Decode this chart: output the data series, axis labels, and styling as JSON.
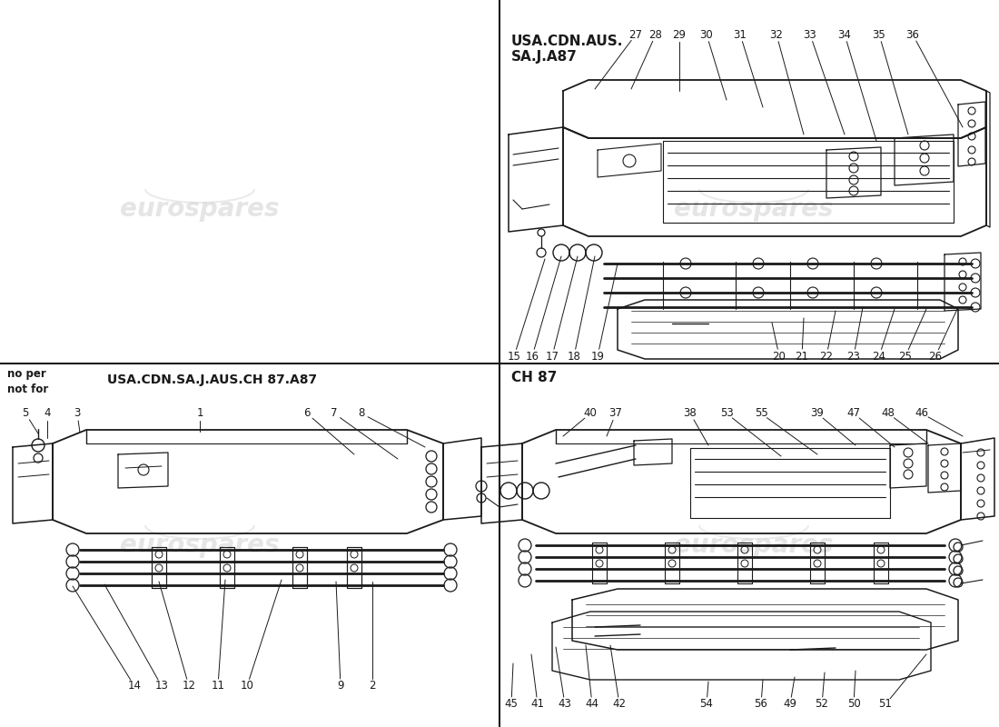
{
  "bg_color": "#ffffff",
  "line_color": "#1a1a1a",
  "top_right_header1": "USA.CDN.AUS.",
  "top_right_header2": "SA.J.A87",
  "bottom_left_header_sm": "no per\nnot for",
  "bottom_left_header_lg": "USA.CDN.SA.J.AUS.CH 87.A87",
  "bottom_right_header": "CH 87",
  "tr_top_nums": [
    "27",
    "28",
    "29",
    "30",
    "31",
    "32",
    "33",
    "34",
    "35",
    "36"
  ],
  "tr_bot_left_nums": [
    "15",
    "16",
    "17",
    "18",
    "19"
  ],
  "tr_bot_right_nums": [
    "20",
    "21",
    "22",
    "23",
    "24",
    "25",
    "26"
  ],
  "bl_top_nums": [
    "5",
    "4",
    "3",
    "1",
    "6",
    "7",
    "8"
  ],
  "bl_bot_nums": [
    "14",
    "13",
    "12",
    "11",
    "10",
    "9",
    "2"
  ],
  "br_top_nums": [
    "40",
    "37",
    "38",
    "53",
    "55",
    "39",
    "47",
    "48",
    "46"
  ],
  "br_bot_nums": [
    "45",
    "41",
    "43",
    "44",
    "42",
    "54",
    "56",
    "49",
    "52",
    "50",
    "51"
  ]
}
